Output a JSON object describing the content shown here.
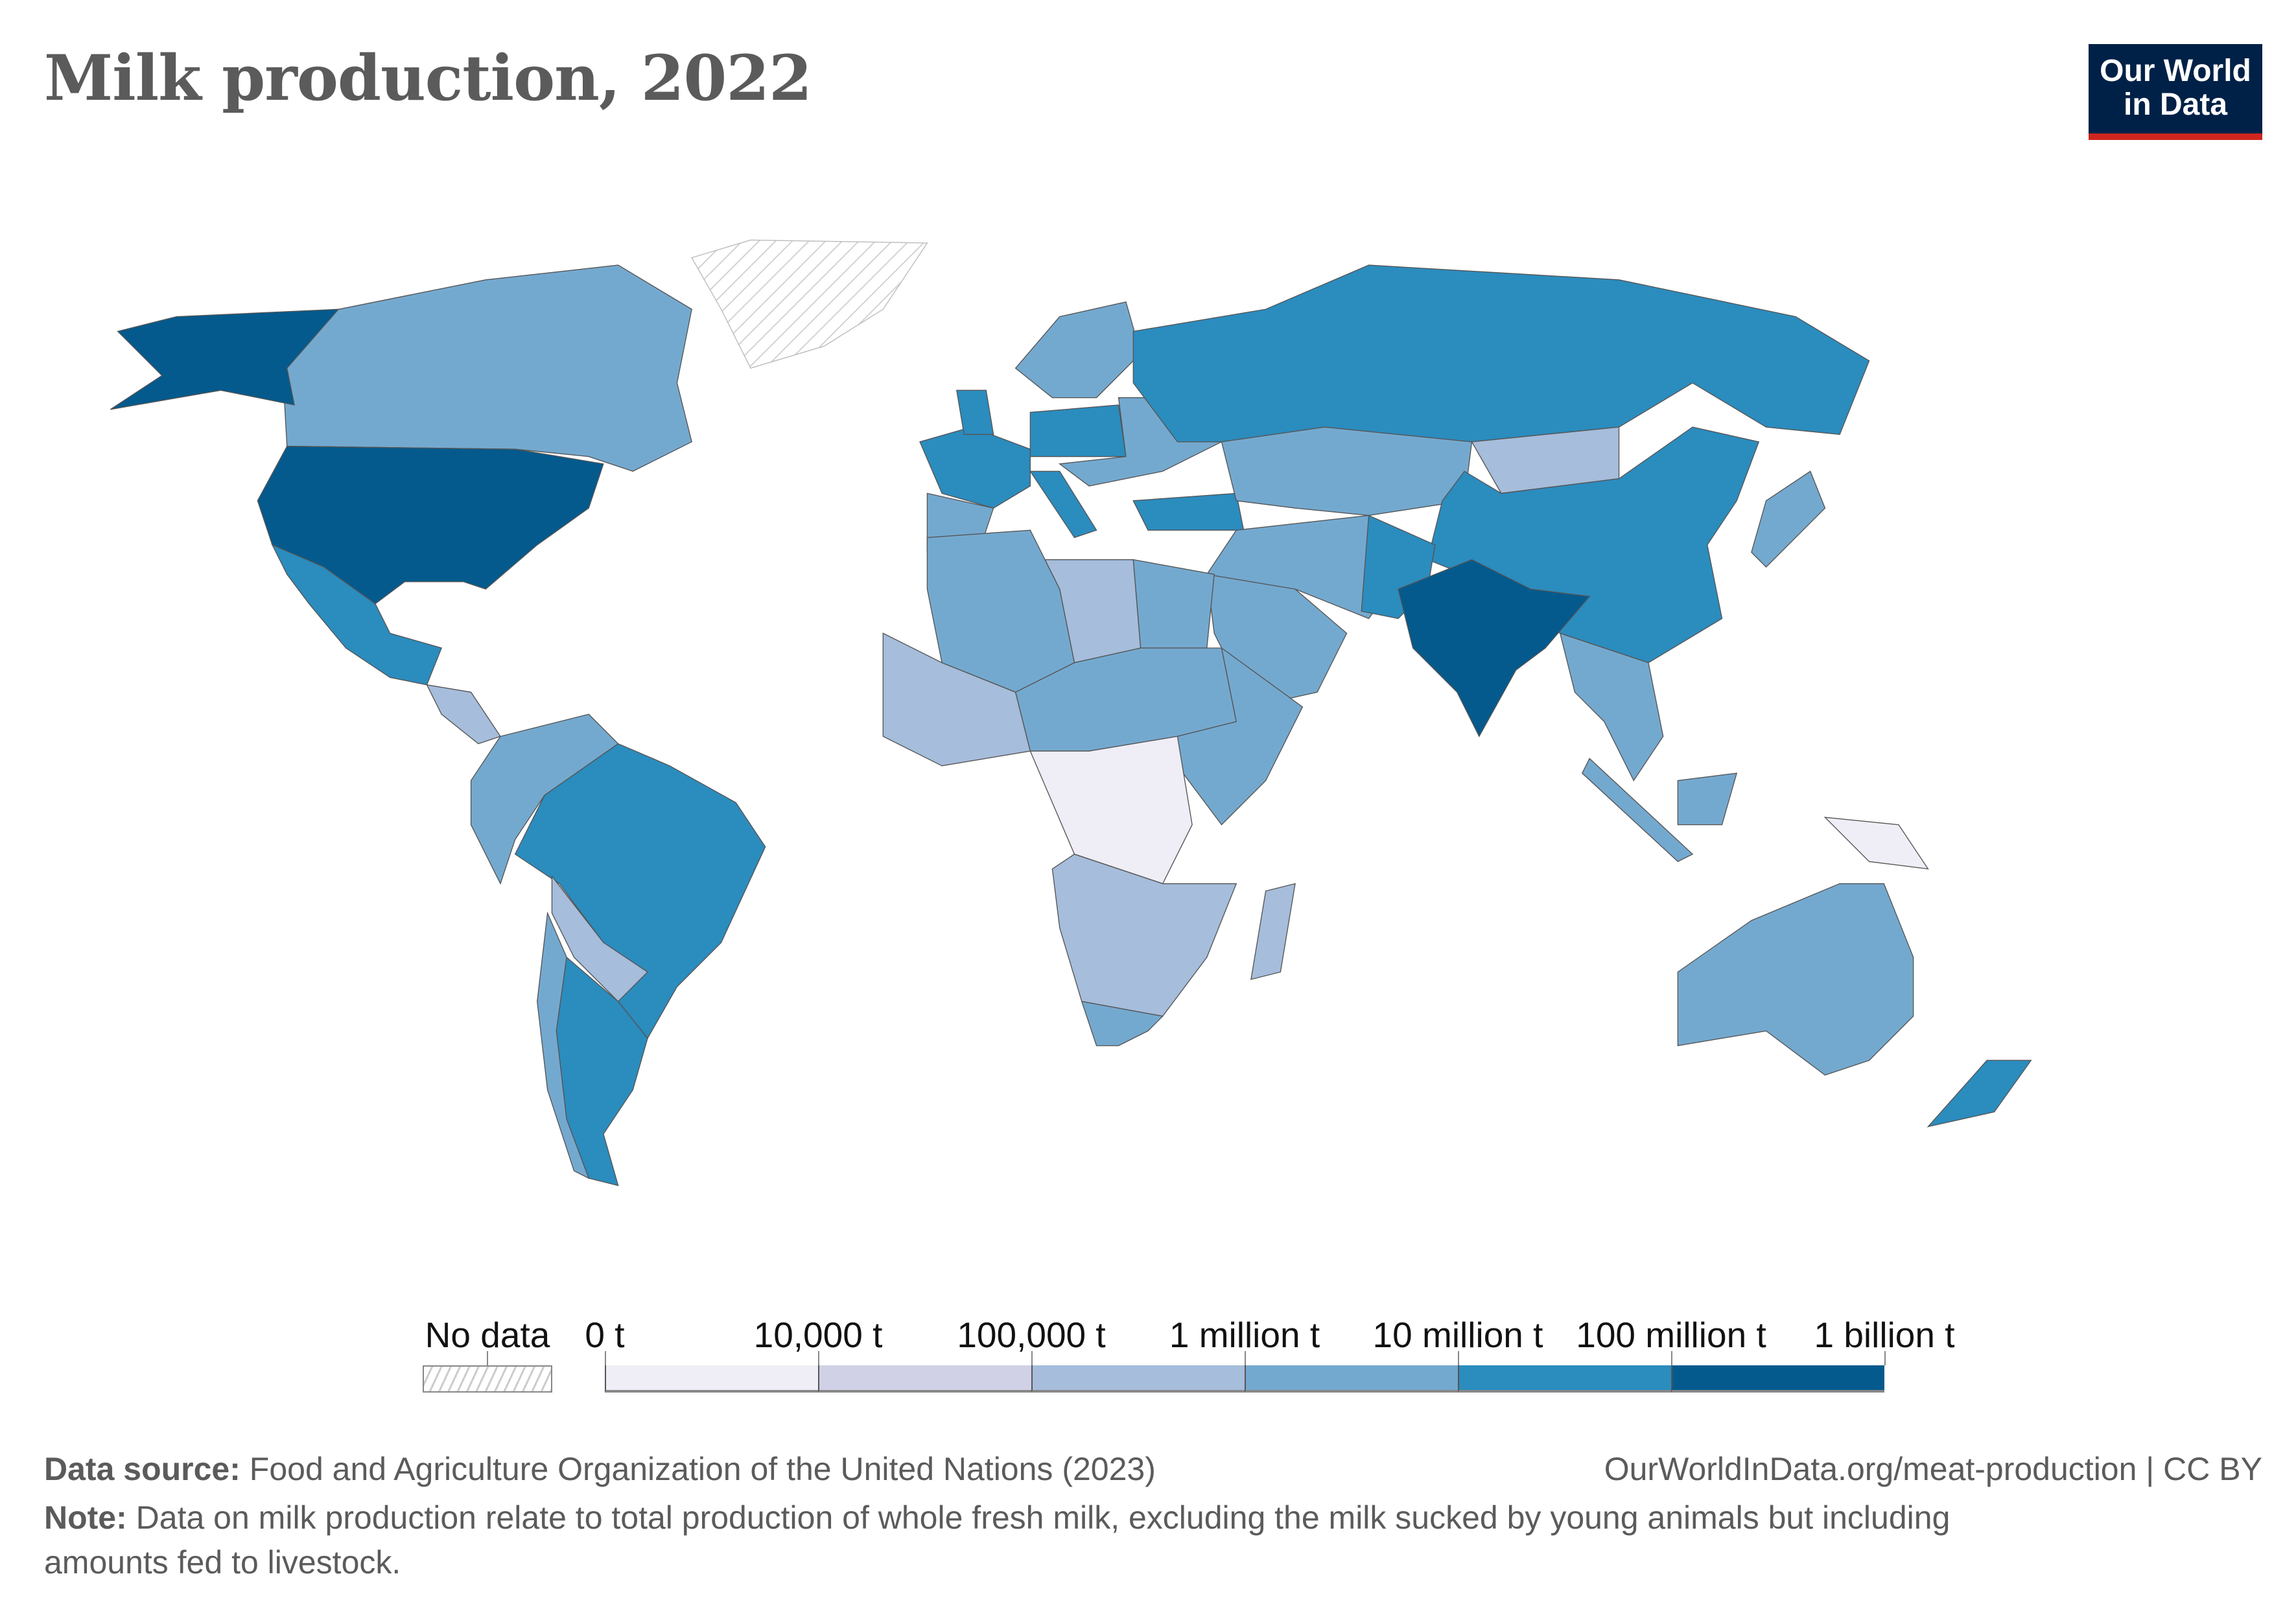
{
  "title": "Milk production, 2022",
  "logo": {
    "line1": "Our World",
    "line2": "in Data"
  },
  "legend": {
    "no_data_label": "No data",
    "labels": [
      "0 t",
      "10,000 t",
      "100,000 t",
      "1 million t",
      "10 million t",
      "100 million t",
      "1 billion t"
    ],
    "colors": [
      "#efedf5",
      "#d0d1e6",
      "#a6bddb",
      "#74a9cf",
      "#2b8cbe",
      "#045a8d"
    ],
    "no_data_color": "#ffffff"
  },
  "footer": {
    "source_label": "Data source:",
    "source": "Food and Agriculture Organization of the United Nations (2023)",
    "url": "OurWorldInData.org/meat-production | CC BY",
    "note_label": "Note:",
    "note_line1": "Data on milk production relate to total production of whole fresh milk, excluding the milk sucked by young animals but including",
    "note_line2": "amounts fed to livestock."
  },
  "chart_data": {
    "type": "choropleth",
    "year": 2022,
    "unit": "t",
    "bins": [
      "0-10,000 t",
      "10,000-100,000 t",
      "100,000 t-1 million t",
      "1-10 million t",
      "10-100 million t",
      "100 million-1 billion t"
    ],
    "countries": [
      {
        "name": "Canada",
        "bin": 3
      },
      {
        "name": "Alaska (United States)",
        "bin": 5
      },
      {
        "name": "United States",
        "bin": 5
      },
      {
        "name": "Mexico",
        "bin": 4
      },
      {
        "name": "Central America",
        "bin": 2
      },
      {
        "name": "Greenland",
        "bin": null
      },
      {
        "name": "Colombia/Venezuela/Peru",
        "bin": 3
      },
      {
        "name": "Brazil",
        "bin": 4
      },
      {
        "name": "Bolivia/Paraguay",
        "bin": 2
      },
      {
        "name": "Argentina",
        "bin": 4
      },
      {
        "name": "Chile",
        "bin": 3
      },
      {
        "name": "France",
        "bin": 4
      },
      {
        "name": "Spain/Portugal",
        "bin": 3
      },
      {
        "name": "United Kingdom",
        "bin": 4
      },
      {
        "name": "Germany/Poland",
        "bin": 4
      },
      {
        "name": "Scandinavia",
        "bin": 3
      },
      {
        "name": "Italy",
        "bin": 4
      },
      {
        "name": "Eastern Europe",
        "bin": 3
      },
      {
        "name": "Turkey",
        "bin": 4
      },
      {
        "name": "Russia",
        "bin": 4
      },
      {
        "name": "Kazakhstan/Central Asia",
        "bin": 3
      },
      {
        "name": "Mongolia",
        "bin": 2
      },
      {
        "name": "China",
        "bin": 4
      },
      {
        "name": "Iran/Middle East",
        "bin": 3
      },
      {
        "name": "Saudi Arabia",
        "bin": 3
      },
      {
        "name": "Pakistan",
        "bin": 4
      },
      {
        "name": "India",
        "bin": 5
      },
      {
        "name": "Southeast Asia",
        "bin": 3
      },
      {
        "name": "Sumatra",
        "bin": 3
      },
      {
        "name": "Borneo",
        "bin": 3
      },
      {
        "name": "Papua",
        "bin": 0
      },
      {
        "name": "Japan",
        "bin": 3
      },
      {
        "name": "Australia",
        "bin": 3
      },
      {
        "name": "New Zealand",
        "bin": 4
      },
      {
        "name": "Morocco/Algeria",
        "bin": 3
      },
      {
        "name": "Libya",
        "bin": 2
      },
      {
        "name": "Egypt",
        "bin": 3
      },
      {
        "name": "West Africa",
        "bin": 2
      },
      {
        "name": "Chad/Sudan",
        "bin": 3
      },
      {
        "name": "Ethiopia/Kenya",
        "bin": 3
      },
      {
        "name": "Central Africa",
        "bin": 0
      },
      {
        "name": "Southern Africa",
        "bin": 2
      },
      {
        "name": "South Africa",
        "bin": 3
      },
      {
        "name": "Madagascar",
        "bin": 2
      }
    ]
  }
}
